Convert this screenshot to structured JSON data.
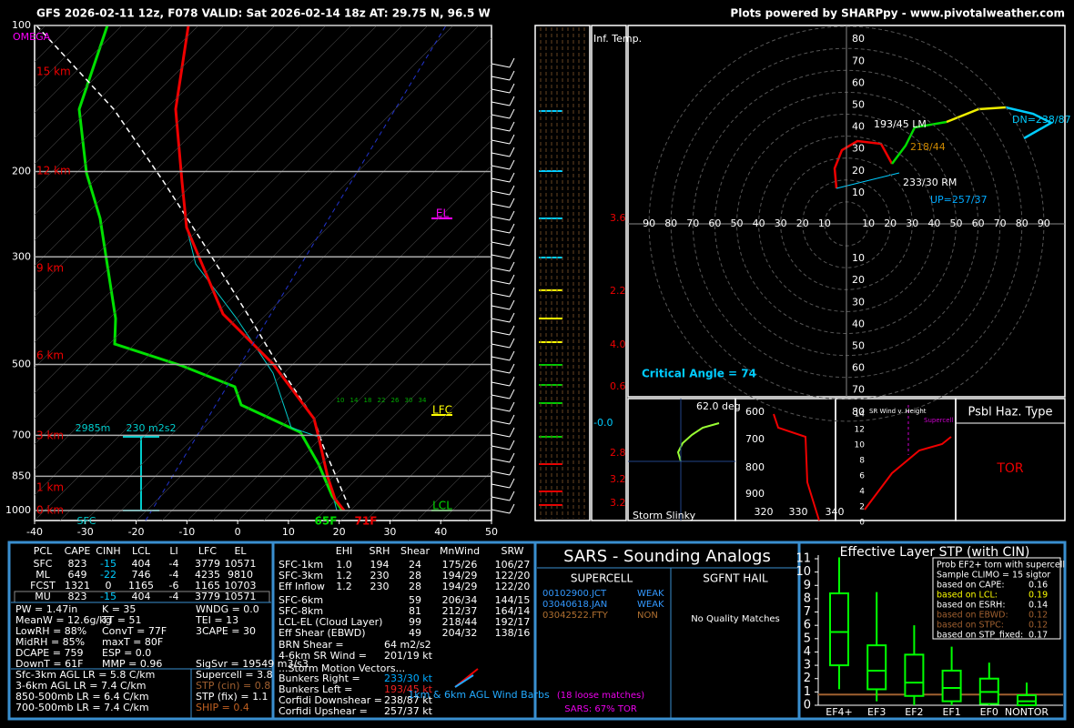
{
  "header": {
    "left": "GFS 2026-02-11 12z, F078  VALID: Sat 2026-02-14 18z  AT: 29.75 N, 96.5 W",
    "right": "Plots powered by SHARPpy - www.pivotalweather.com"
  },
  "skewt": {
    "omega": "OMEGA",
    "pressure_ticks": [
      100,
      200,
      300,
      500,
      700,
      850,
      1000
    ],
    "plim": [
      100,
      1000
    ],
    "temp_ticks": [
      -40,
      -30,
      -20,
      -10,
      0,
      10,
      20,
      30,
      40,
      50
    ],
    "xlim": [
      -40,
      50
    ],
    "heights": [
      "15 km",
      "12 km",
      "9 km",
      "6 km",
      "3 km",
      "1 km",
      "0 km"
    ],
    "el": "EL",
    "lfc": "LFC",
    "lcl": "LCL",
    "eff_base": "2985m",
    "eff_srh": "230 m2s2",
    "sfc": "SFC",
    "dewpoint_sfc": "65F",
    "temp_sfc": "71F",
    "mix_labels": [
      "10",
      "14",
      "18",
      "22",
      "26",
      "30",
      "34"
    ]
  },
  "inferred_temp": {
    "title": "Inf. Temp.",
    "values": [
      "3.6",
      "2.2",
      "4.0",
      "0.6",
      "-0.0",
      "2.8",
      "3.2",
      "3.2"
    ]
  },
  "hodograph": {
    "ring_labels": [
      10,
      20,
      30,
      40,
      50,
      60,
      70,
      80
    ],
    "ring_labels_x": [
      10,
      20,
      30,
      40,
      50,
      60,
      70,
      80,
      90
    ],
    "critical_angle": "Critical Angle = 74",
    "left_mover": "193/45 LM",
    "mean_wind": "218/44",
    "right_mover": "233/30 RM",
    "upshear": "UP=257/37",
    "downshear": "DN=238/87"
  },
  "slinky": {
    "angle": "62.0 deg",
    "title": "Storm Slinky"
  },
  "theta_e": {
    "yticks": [
      600,
      700,
      800,
      900
    ],
    "xticks": [
      320,
      330,
      340
    ]
  },
  "sr_wind": {
    "title": "SR Wind v. Height",
    "subtitle": "Supercell",
    "yticks": [
      14,
      12,
      10,
      8,
      6,
      4,
      2,
      0
    ]
  },
  "hazard": {
    "title": "Psbl Haz. Type",
    "value": "TOR"
  },
  "parcels": {
    "header": [
      "PCL",
      "CAPE",
      "CINH",
      "LCL",
      "LI",
      "LFC",
      "EL"
    ],
    "rows": [
      [
        "SFC",
        "823",
        "-15",
        "404",
        "-4",
        "3779",
        "10571"
      ],
      [
        "ML",
        "649",
        "-22",
        "746",
        "-4",
        "4235",
        "9810"
      ],
      [
        "FCST",
        "1321",
        "0",
        "1165",
        "-6",
        "1165",
        "10703"
      ],
      [
        "MU",
        "823",
        "-15",
        "404",
        "-4",
        "3779",
        "10571"
      ]
    ]
  },
  "indices": [
    [
      "PW = 1.47in",
      "K = 35",
      "WNDG = 0.0"
    ],
    [
      "MeanW = 12.6g/kg",
      "TT = 51",
      "TEI = 13"
    ],
    [
      "LowRH = 88%",
      "ConvT = 77F",
      "3CAPE = 30"
    ],
    [
      "MidRH = 85%",
      "maxT = 80F"
    ],
    [
      "DCAPE = 759",
      "ESP = 0.0"
    ],
    [
      "DownT = 61F",
      "MMP = 0.96",
      "SigSvr = 19549 m3/s3"
    ]
  ],
  "lapse_rates": [
    "Sfc-3km AGL LR = 5.8 C/km",
    "3-6km AGL LR = 7.4 C/km",
    "850-500mb LR = 6.4 C/km",
    "700-500mb LR = 7.4 C/km"
  ],
  "composites": [
    "Supercell = 3.8",
    "STP (cin) = 0.8",
    "STP (fix) = 1.1",
    "SHIP = 0.4"
  ],
  "kinematics": {
    "header": [
      "EHI",
      "SRH",
      "Shear",
      "MnWind",
      "SRW"
    ],
    "rows": [
      [
        "SFC-1km",
        "1.0",
        "194",
        "24",
        "175/26",
        "106/27"
      ],
      [
        "SFC-3km",
        "1.2",
        "230",
        "28",
        "194/29",
        "122/20"
      ],
      [
        "Eff Inflow",
        "1.2",
        "230",
        "28",
        "194/29",
        "122/20"
      ],
      [
        "SFC-6km",
        "",
        "",
        "59",
        "206/34",
        "144/15"
      ],
      [
        "SFC-8km",
        "",
        "",
        "81",
        "212/37",
        "164/14"
      ],
      [
        "LCL-EL (Cloud Layer)",
        "",
        "",
        "99",
        "218/44",
        "192/17"
      ],
      [
        "Eff Shear (EBWD)",
        "",
        "",
        "49",
        "204/32",
        "138/16"
      ]
    ],
    "extra": [
      [
        "BRN Shear =",
        "64 m2/s2"
      ],
      [
        "4-6km SR Wind =",
        "201/19 kt"
      ]
    ],
    "motion_title": "...Storm Motion Vectors...",
    "motions": [
      [
        "Bunkers Right =",
        "233/30 kt"
      ],
      [
        "Bunkers Left =",
        "193/45 kt"
      ],
      [
        "Corfidi Downshear =",
        "238/87 kt"
      ],
      [
        "Corfidi Upshear =",
        "257/37 kt"
      ]
    ],
    "barbs_label": "1km & 6km AGL Wind Barbs"
  },
  "sars": {
    "title": "SARS - Sounding Analogs",
    "supercell": "SUPERCELL",
    "hail": "SGFNT HAIL",
    "matches": [
      [
        "00102900.JCT",
        "WEAK"
      ],
      [
        "03040618.JAN",
        "WEAK"
      ],
      [
        "03042522.FTY",
        "NON"
      ]
    ],
    "hail_matches": "No Quality Matches",
    "loose": "(18 loose matches)",
    "summary": "SARS: 67% TOR"
  },
  "chart_data": {
    "type": "box",
    "title": "Effective Layer STP (with CIN)",
    "categories": [
      "EF4+",
      "EF3",
      "EF2",
      "EF1",
      "EF0",
      "NONTOR"
    ],
    "ylim": [
      0,
      11
    ],
    "yticks": [
      0,
      1,
      2,
      3,
      4,
      5,
      6,
      7,
      8,
      9,
      10,
      11
    ],
    "boxes": [
      {
        "low": 1.2,
        "q1": 3.0,
        "median": 5.5,
        "q3": 8.4,
        "high": 11.1
      },
      {
        "low": 0.3,
        "q1": 1.2,
        "median": 2.6,
        "q3": 4.5,
        "high": 8.5
      },
      {
        "low": 0,
        "q1": 0.7,
        "median": 1.7,
        "q3": 3.8,
        "high": 6.0
      },
      {
        "low": 0,
        "q1": 0.3,
        "median": 1.3,
        "q3": 2.6,
        "high": 4.4
      },
      {
        "low": 0,
        "q1": 0.1,
        "median": 1.0,
        "q3": 2.0,
        "high": 3.2
      },
      {
        "low": 0,
        "q1": 0,
        "median": 0.3,
        "q3": 0.75,
        "high": 1.7
      }
    ],
    "current": 0.8,
    "color": "#00ff00",
    "legend": [
      "Prob EF2+ torn with supercell",
      "Sample CLIMO = 15 sigtor"
    ],
    "probs": [
      [
        "based on CAPE:",
        "0.16"
      ],
      [
        "based on LCL:",
        "0.19"
      ],
      [
        "based on ESRH:",
        "0.14"
      ],
      [
        "based on EBWD:",
        "0.12"
      ],
      [
        "based on STPC:",
        "0.12"
      ],
      [
        "based on STP_fixed:",
        "0.17"
      ]
    ]
  }
}
